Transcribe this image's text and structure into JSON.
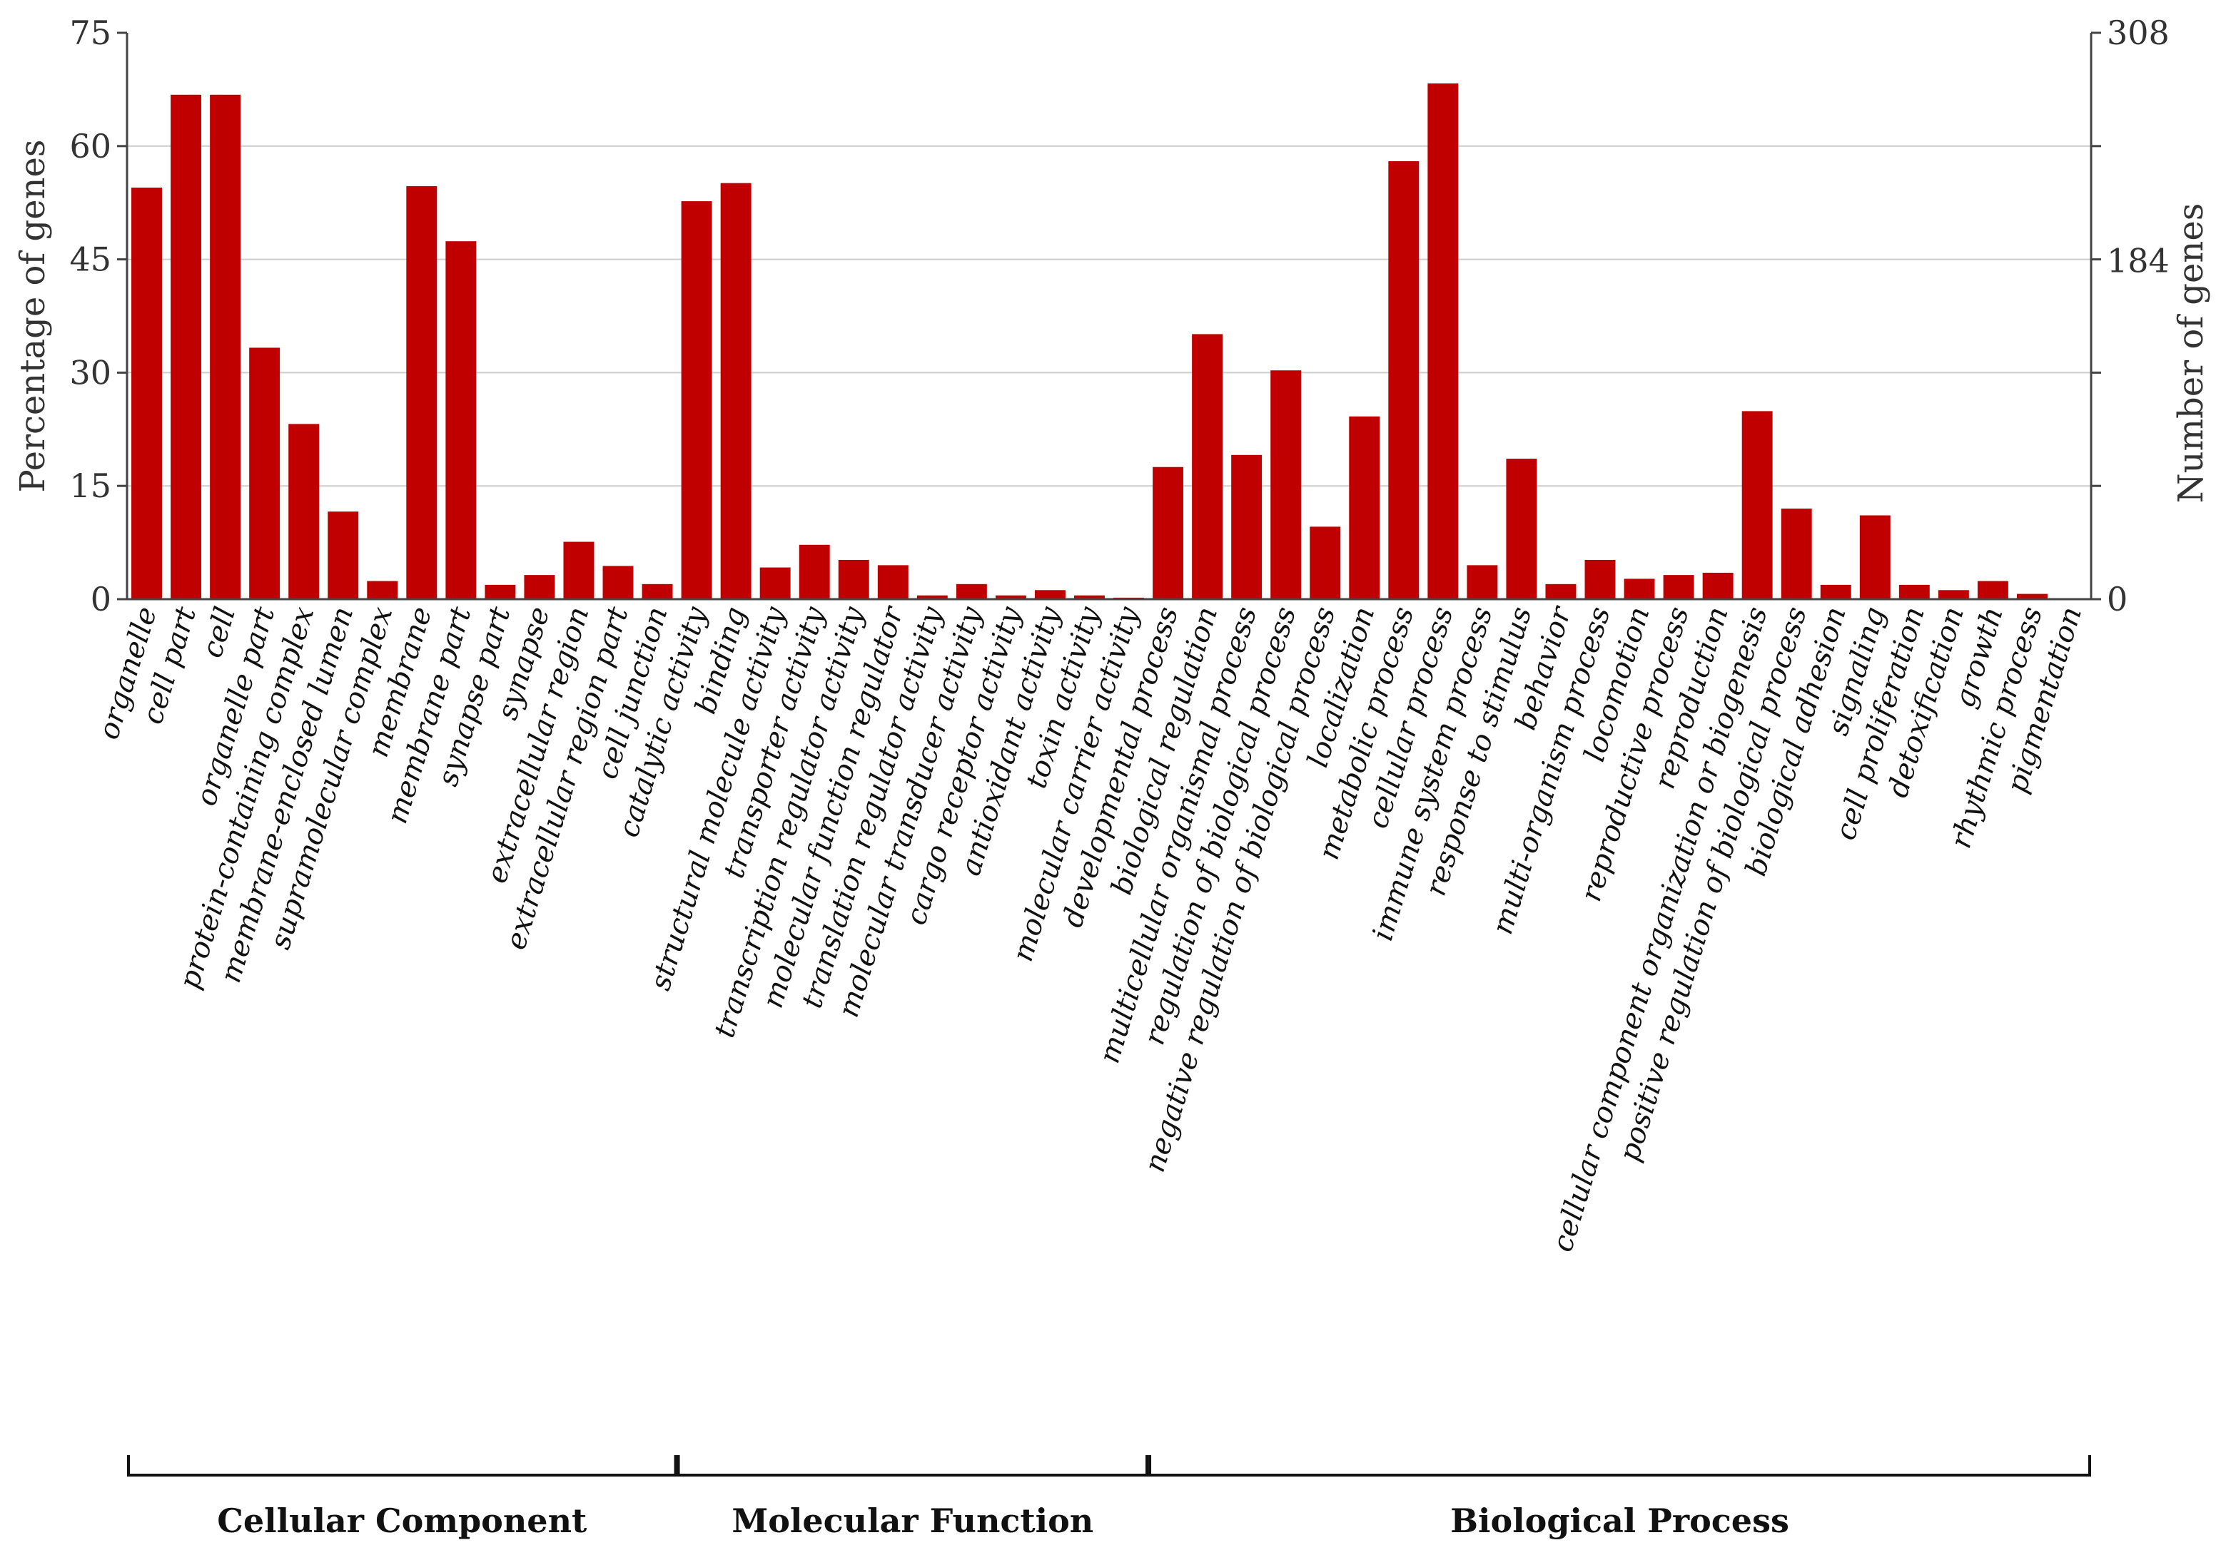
{
  "chart_data": {
    "type": "bar",
    "title": "",
    "xlabel": "",
    "ylabel": "Percentage of genes",
    "y2label": "Number of genes",
    "ylim": [
      0,
      75
    ],
    "yticks": [
      0,
      15,
      30,
      45,
      60,
      75
    ],
    "y2ticks": [
      0,
      184,
      308
    ],
    "y2max": 308,
    "bar_color": "#c00000",
    "grid": true,
    "categories": [
      "organelle",
      "cell part",
      "cell",
      "organelle part",
      "protein-containing complex",
      "membrane-enclosed lumen",
      "supramolecular complex",
      "membrane",
      "membrane part",
      "synapse part",
      "synapse",
      "extracellular region",
      "extracellular region part",
      "cell junction",
      "catalytic activity",
      "binding",
      "structural molecule activity",
      "transporter activity",
      "transcription regulator activity",
      "molecular function regulator",
      "translation regulator activity",
      "molecular transducer activity",
      "cargo receptor activity",
      "antioxidant activity",
      "toxin activity",
      "molecular carrier activity",
      "developmental process",
      "biological regulation",
      "multicellular organismal process",
      "regulation of biological process",
      "negative regulation of biological process",
      "localization",
      "metabolic process",
      "cellular process",
      "immune system process",
      "response to stimulus",
      "behavior",
      "multi-organism process",
      "locomotion",
      "reproductive process",
      "reproduction",
      "cellular component organization or biogenesis",
      "positive regulation of biological process",
      "biological adhesion",
      "signaling",
      "cell proliferation",
      "detoxification",
      "growth",
      "rhythmic process",
      "pigmentation"
    ],
    "values": [
      54.5,
      66.8,
      66.8,
      33.3,
      23.2,
      11.6,
      2.4,
      54.7,
      47.4,
      1.9,
      3.2,
      7.6,
      4.4,
      2.0,
      52.7,
      55.1,
      4.2,
      7.2,
      5.2,
      4.5,
      0.5,
      2.0,
      0.5,
      1.2,
      0.5,
      0.2,
      17.5,
      35.1,
      19.1,
      30.3,
      9.6,
      24.2,
      58.0,
      68.3,
      4.5,
      18.6,
      2.0,
      5.2,
      2.7,
      3.2,
      3.5,
      24.9,
      12.0,
      1.9,
      11.1,
      1.9,
      1.2,
      2.4,
      0.7,
      0.1
    ],
    "groups": [
      {
        "label": "Cellular Component",
        "start": 0,
        "end": 13
      },
      {
        "label": "Molecular Function",
        "start": 14,
        "end": 25
      },
      {
        "label": "Biological Process",
        "start": 26,
        "end": 49
      }
    ]
  }
}
